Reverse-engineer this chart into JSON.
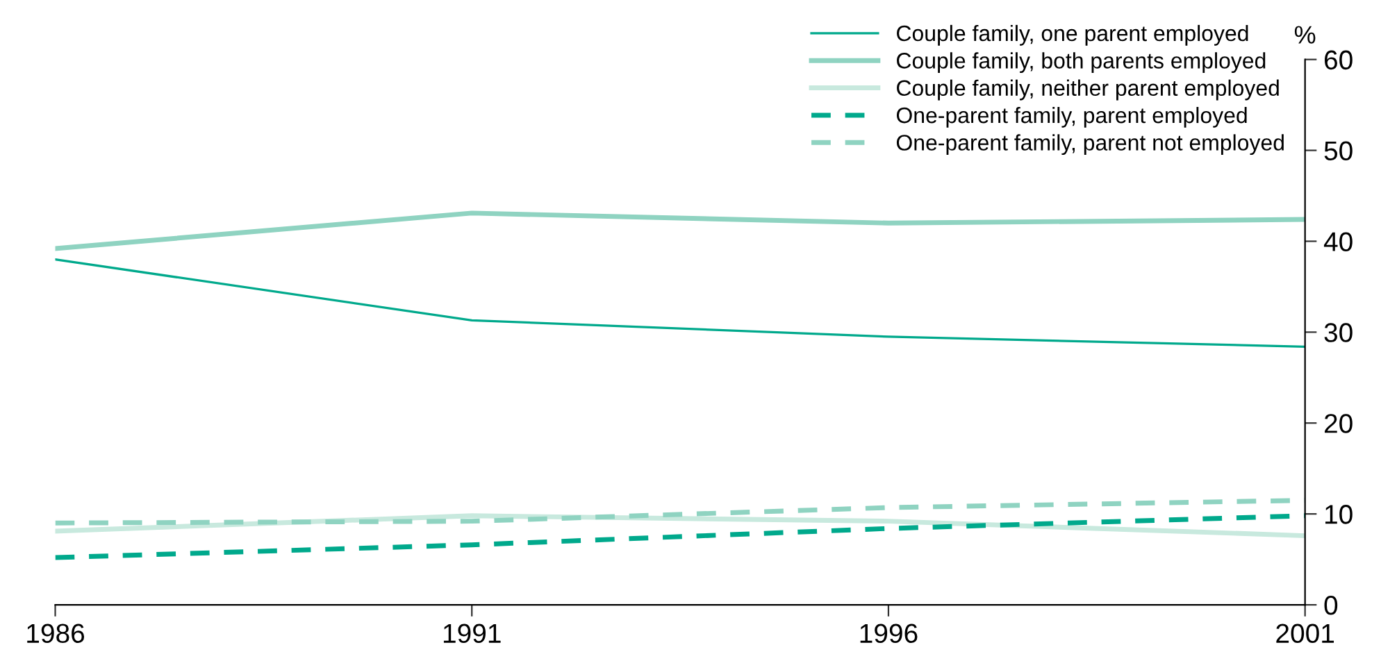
{
  "chart_data": {
    "type": "line",
    "ylabel": "%",
    "x": [
      1986,
      1991,
      1996,
      2001
    ],
    "xlim": [
      1986,
      2001
    ],
    "xticks": [
      1986,
      1991,
      1996,
      2001
    ],
    "ylim": [
      0,
      60
    ],
    "yticks": [
      0,
      10,
      20,
      30,
      40,
      50,
      60
    ],
    "grid": false,
    "legend": "top right",
    "marker": "none",
    "series": [
      {
        "name": "Couple family, one parent employed",
        "color": "#00a98c",
        "line_style": "solid",
        "values": [
          38.0,
          31.3,
          29.5,
          28.4
        ]
      },
      {
        "name": "Couple family, both parents employed",
        "color": "#8fd3c1",
        "line_style": "solid",
        "values": [
          39.2,
          43.1,
          42.0,
          42.4
        ]
      },
      {
        "name": "Couple family, neither parent employed",
        "color": "#c8e9de",
        "line_style": "solid",
        "values": [
          8.1,
          9.8,
          9.2,
          7.6
        ]
      },
      {
        "name": "One-parent family, parent employed",
        "color": "#00a98c",
        "line_style": "dashed",
        "values": [
          5.2,
          6.6,
          8.4,
          9.8
        ]
      },
      {
        "name": "One-parent family, parent not employed",
        "color": "#8fd3c1",
        "line_style": "dashed",
        "values": [
          9.0,
          9.2,
          10.7,
          11.5
        ]
      }
    ]
  }
}
